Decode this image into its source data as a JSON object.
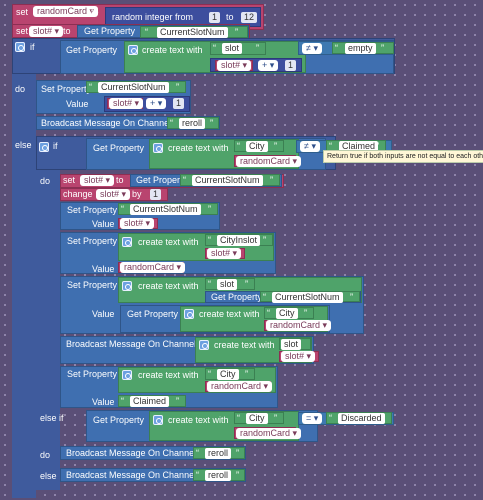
{
  "blocks": {
    "set_label": "set",
    "to_label": "to",
    "if_label": "if",
    "else_if_label": "else if",
    "do_label": "do",
    "else_label": "else",
    "change_label": "change",
    "by_label": "by",
    "value_label": "Value",
    "get_property": "Get Property",
    "set_property": "Set Property",
    "create_text_with": "create text with",
    "broadcast": "Broadcast Message On Channel",
    "random_integer": "random integer from",
    "plus_op": "+",
    "neq_op": "≠",
    "eq_op": "=",
    "open_quote": "“",
    "close_quote": "”"
  },
  "vars": {
    "randomCard": "randomCard",
    "slot_hash": "slot#"
  },
  "values": {
    "one": "1",
    "twelve": "12",
    "CurrentSlotNum": "CurrentSlotNum",
    "slot": "slot",
    "empty": "empty",
    "reroll": "reroll",
    "City": "City",
    "Claimed": "Claimed",
    "CityInslot": "CityInslot",
    "Discarded": "Discarded"
  },
  "tooltip": "Return true if both inputs are not equal to each other."
}
